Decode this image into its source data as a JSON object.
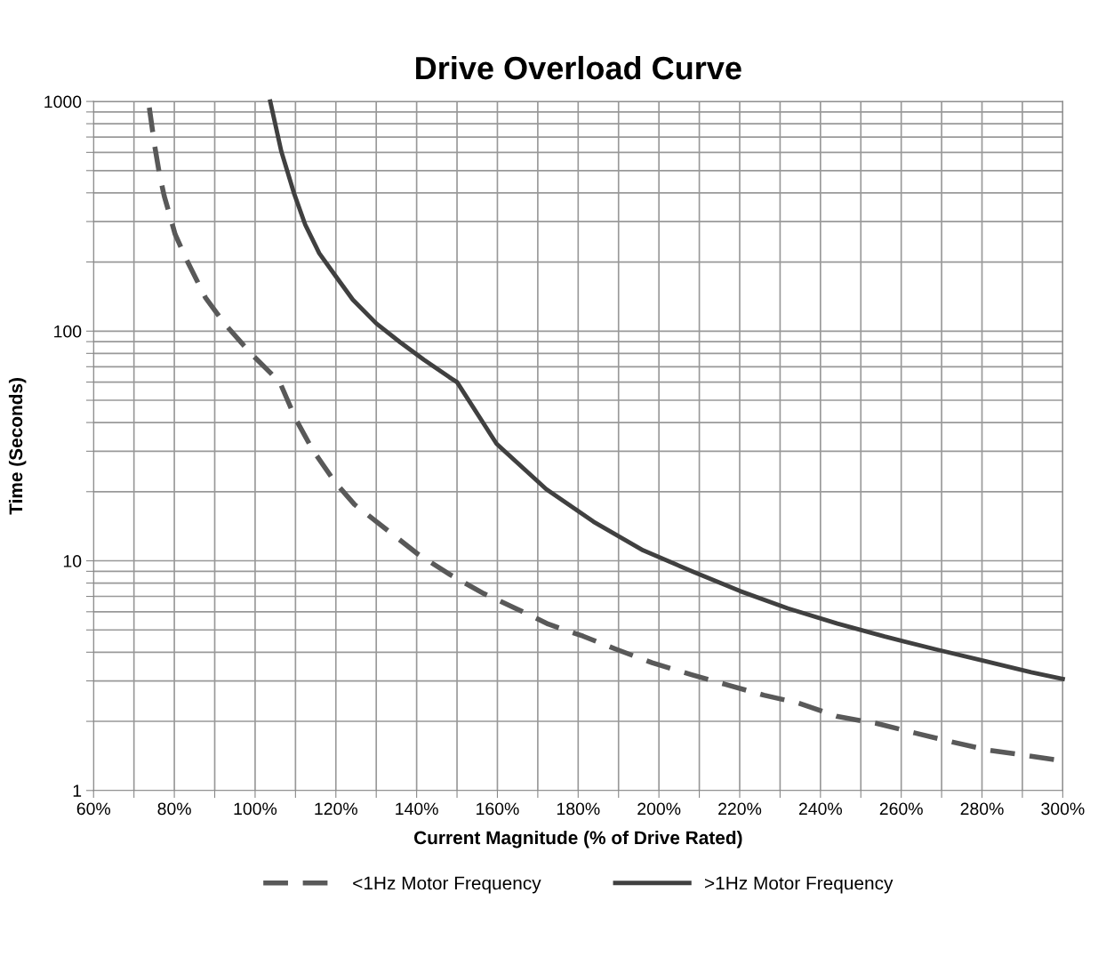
{
  "chart_data": {
    "type": "line",
    "title": "Drive Overload Curve",
    "xlabel": "Current Magnitude (% of Drive Rated)",
    "ylabel": "Time (Seconds)",
    "log": "y",
    "grid": true,
    "legend": "bottom",
    "marker": "none",
    "xlim": [
      60,
      300
    ],
    "ylim": [
      1,
      1000
    ],
    "xticks": [
      {
        "value": 60,
        "label": "60%"
      },
      {
        "value": 70,
        "label": null
      },
      {
        "value": 80,
        "label": "80%"
      },
      {
        "value": 90,
        "label": null
      },
      {
        "value": 100,
        "label": "100%"
      },
      {
        "value": 110,
        "label": null
      },
      {
        "value": 120,
        "label": "120%"
      },
      {
        "value": 130,
        "label": null
      },
      {
        "value": 140,
        "label": "140%"
      },
      {
        "value": 150,
        "label": null
      },
      {
        "value": 160,
        "label": "160%"
      },
      {
        "value": 170,
        "label": null
      },
      {
        "value": 180,
        "label": "180%"
      },
      {
        "value": 190,
        "label": null
      },
      {
        "value": 200,
        "label": "200%"
      },
      {
        "value": 210,
        "label": null
      },
      {
        "value": 220,
        "label": "220%"
      },
      {
        "value": 230,
        "label": null
      },
      {
        "value": 240,
        "label": "240%"
      },
      {
        "value": 250,
        "label": null
      },
      {
        "value": 260,
        "label": "260%"
      },
      {
        "value": 270,
        "label": null
      },
      {
        "value": 280,
        "label": "280%"
      },
      {
        "value": 290,
        "label": null
      },
      {
        "value": 300,
        "label": "300%"
      }
    ],
    "yticks": [
      1,
      {
        "value": 2,
        "label": null
      },
      {
        "value": 3,
        "label": null
      },
      {
        "value": 4,
        "label": null
      },
      {
        "value": 5,
        "label": null
      },
      {
        "value": 6,
        "label": null
      },
      {
        "value": 7,
        "label": null
      },
      {
        "value": 8,
        "label": null
      },
      {
        "value": 9,
        "label": null
      },
      10,
      {
        "value": 20,
        "label": null
      },
      {
        "value": 30,
        "label": null
      },
      {
        "value": 40,
        "label": null
      },
      {
        "value": 50,
        "label": null
      },
      {
        "value": 60,
        "label": null
      },
      {
        "value": 70,
        "label": null
      },
      {
        "value": 80,
        "label": null
      },
      {
        "value": 90,
        "label": null
      },
      100,
      {
        "value": 200,
        "label": null
      },
      {
        "value": 300,
        "label": null
      },
      {
        "value": 400,
        "label": null
      },
      {
        "value": 500,
        "label": null
      },
      {
        "value": 600,
        "label": null
      },
      {
        "value": 700,
        "label": null
      },
      {
        "value": 800,
        "label": null
      },
      {
        "value": 900,
        "label": null
      },
      1000
    ],
    "series": [
      {
        "name": "<1Hz Motor Frequency",
        "color": "#595959",
        "line_style": "dashed",
        "x": [
          73.8,
          75.1,
          76.3,
          77.5,
          80.2,
          83.0,
          87.7,
          92.4,
          97.1,
          100.2,
          106.1,
          110,
          114.3,
          119.8,
          124.6,
          133.2,
          140.3,
          148.3,
          156.6,
          164.6,
          172.6,
          181.2,
          189.7,
          198.3,
          207.9,
          216.4,
          226.0,
          234.6,
          244.2,
          253.8,
          263.4,
          273.0,
          281.5,
          291.1,
          298.1
        ],
        "values": [
          940,
          646,
          484,
          387,
          264,
          205,
          140,
          108,
          87,
          76,
          60,
          41.6,
          30.3,
          22,
          17.6,
          13.4,
          10.7,
          8.7,
          7.2,
          6.2,
          5.3,
          4.7,
          4.1,
          3.6,
          3.2,
          2.9,
          2.6,
          2.4,
          2.1,
          1.96,
          1.78,
          1.62,
          1.5,
          1.42,
          1.36
        ]
      },
      {
        "name": ">1Hz Motor Frequency",
        "color": "#404040",
        "line_style": "solid",
        "x": [
          103.75,
          106.5,
          109.6,
          112.4,
          115.9,
          119.8,
          124.2,
          130.0,
          135.9,
          141.8,
          148.1,
          150,
          159.8,
          172.1,
          183.8,
          196.1,
          208.4,
          220.1,
          231.9,
          244.2,
          255.9,
          268.7,
          279.9,
          292.2,
          300
        ],
        "values": [
          1000,
          605,
          400,
          291,
          218,
          175,
          137,
          108,
          89.5,
          75,
          63,
          60,
          32.3,
          20.5,
          14.8,
          11.1,
          8.97,
          7.38,
          6.21,
          5.33,
          4.68,
          4.11,
          3.69,
          3.27,
          3.06
        ]
      }
    ]
  }
}
